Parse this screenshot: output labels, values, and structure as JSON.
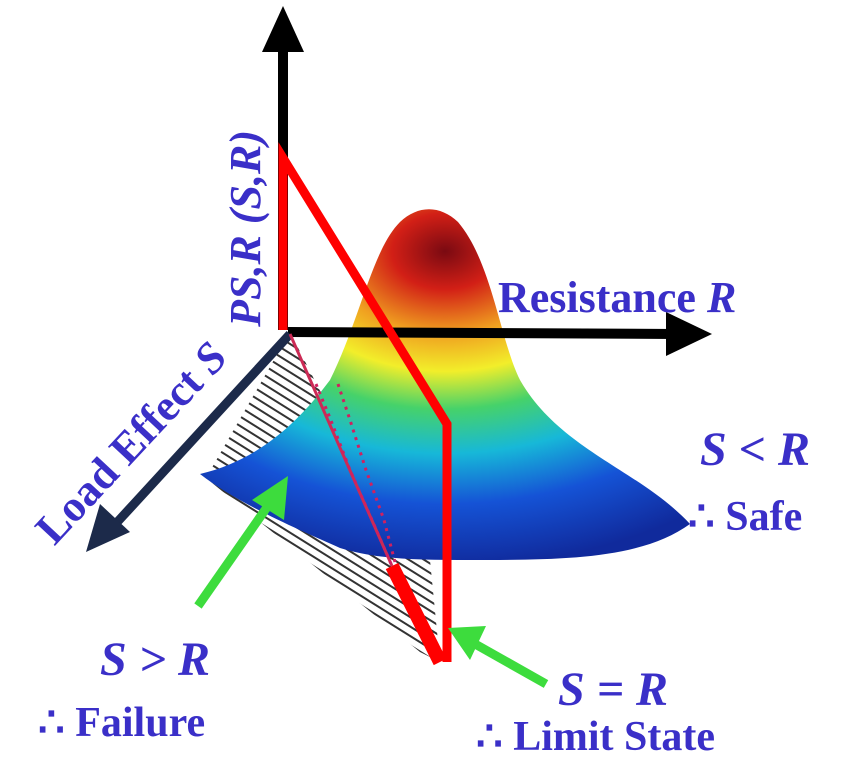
{
  "axes": {
    "y_label_italic": "PS,R (S,R)",
    "x_label_text": "Resistance ",
    "x_label_var": "R",
    "z_label_text": "Load Effect ",
    "z_label_var": "S"
  },
  "regions": {
    "safe": {
      "condition": "S < R",
      "conclusion": "∴ Safe"
    },
    "failure": {
      "condition": "S > R",
      "conclusion": "∴ Failure"
    },
    "limit": {
      "condition": "S = R",
      "conclusion": "∴ Limit State"
    }
  },
  "colors": {
    "label": "#3a2fc8",
    "axis": "#000000",
    "load_axis": "#1c2a4a",
    "limit_plane": "#ff0000",
    "pointer": "#3ddc3d"
  }
}
